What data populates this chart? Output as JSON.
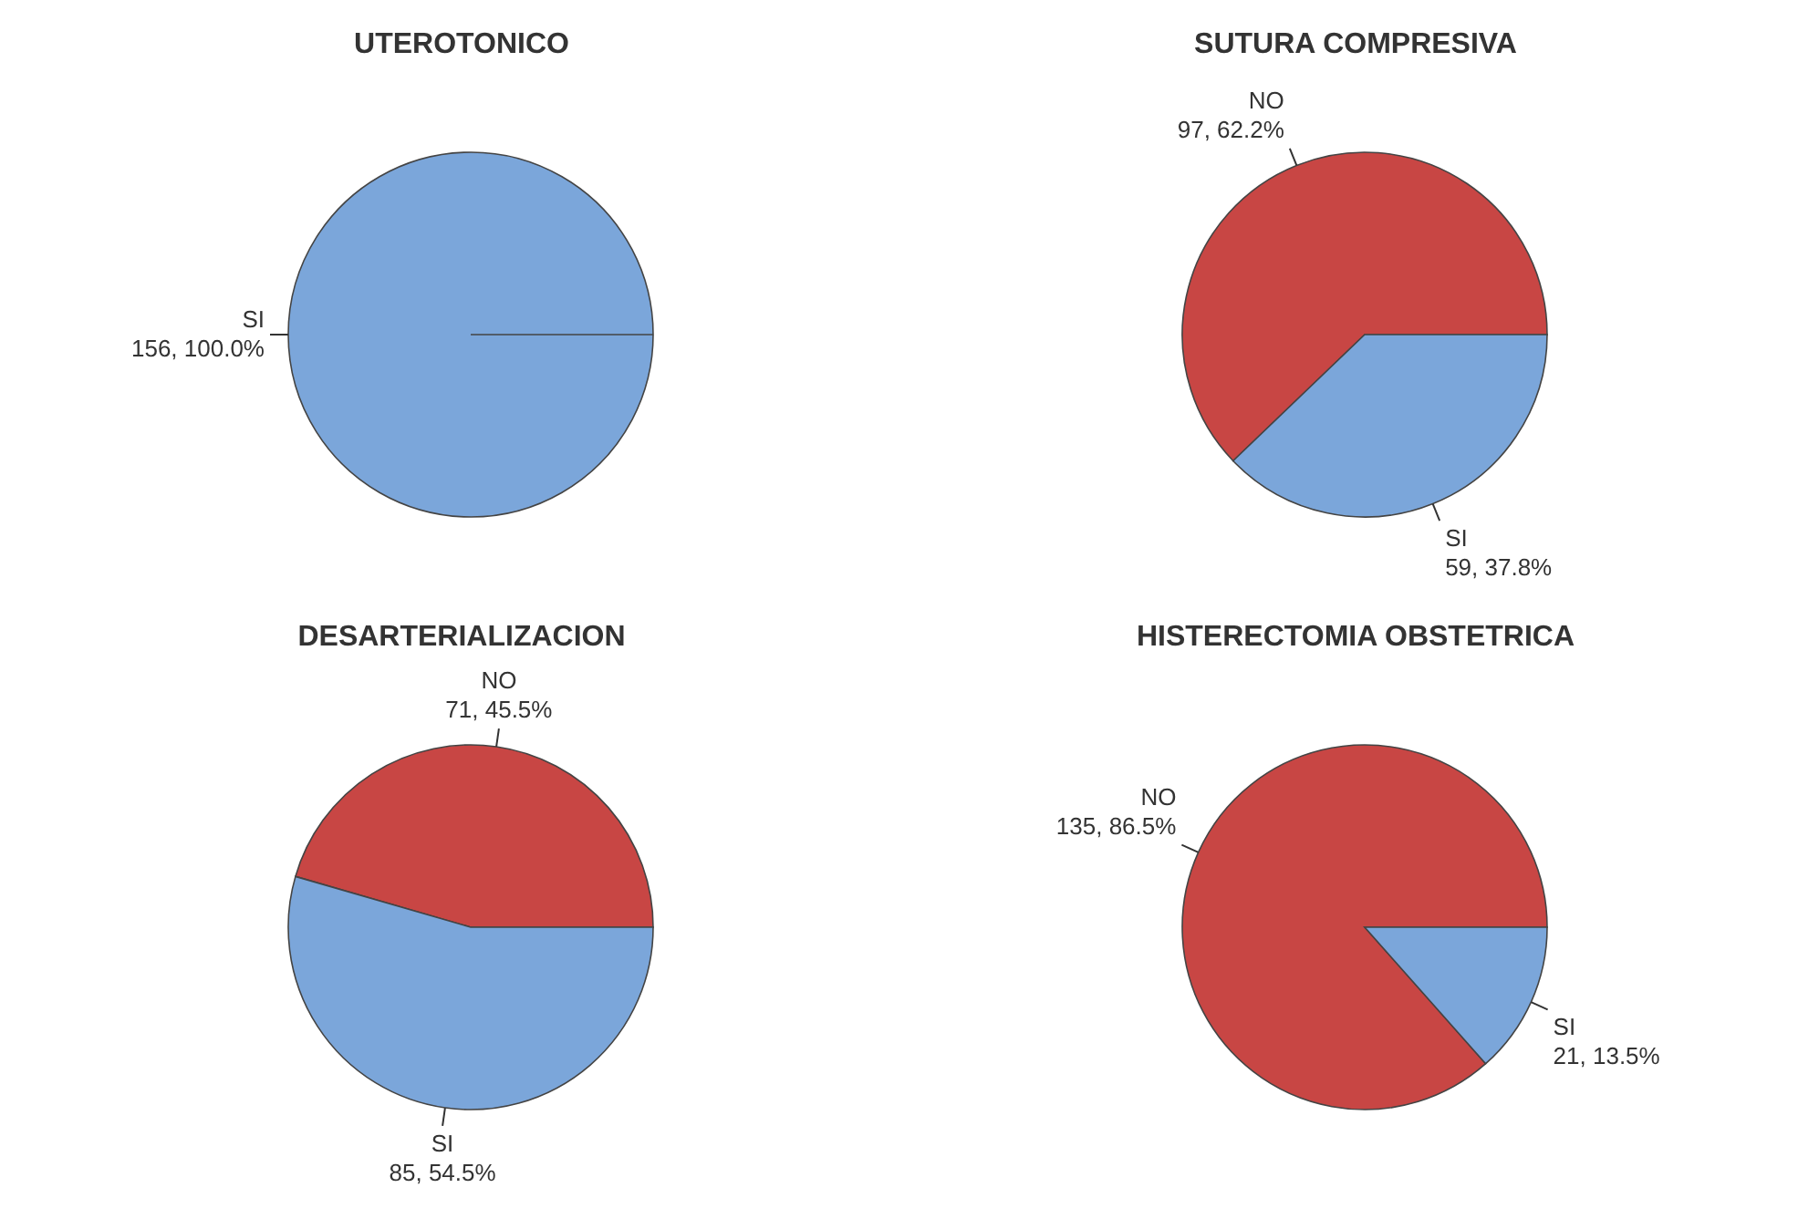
{
  "chart_data": [
    {
      "type": "pie",
      "title": "UTEROTONICO",
      "categories": [
        "SI"
      ],
      "values": [
        156
      ],
      "value_labels": [
        "156, 100.0%"
      ],
      "colors": [
        "#7ba6da"
      ],
      "legend": false
    },
    {
      "type": "pie",
      "title": "SUTURA COMPRESIVA",
      "categories": [
        "NO",
        "SI"
      ],
      "values": [
        97,
        59
      ],
      "value_labels": [
        "97, 62.2%",
        "59, 37.8%"
      ],
      "colors": [
        "#c84644",
        "#7ba6da"
      ],
      "legend": false
    },
    {
      "type": "pie",
      "title": "DESARTERIALIZACION",
      "categories": [
        "NO",
        "SI"
      ],
      "values": [
        71,
        85
      ],
      "value_labels": [
        "71, 45.5%",
        "85, 54.5%"
      ],
      "colors": [
        "#c84644",
        "#7ba6da"
      ],
      "legend": false
    },
    {
      "type": "pie",
      "title": "HISTERECTOMIA OBSTETRICA",
      "categories": [
        "NO",
        "SI"
      ],
      "values": [
        135,
        21
      ],
      "value_labels": [
        "135, 86.5%",
        "21, 13.5%"
      ],
      "colors": [
        "#c84644",
        "#7ba6da"
      ],
      "legend": false
    }
  ]
}
